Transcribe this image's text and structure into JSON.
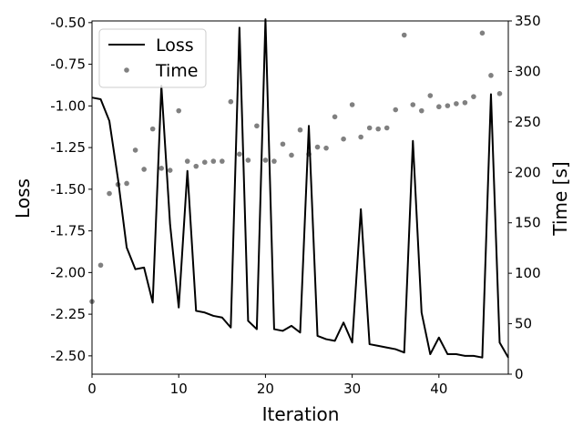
{
  "chart_data": {
    "type": "line",
    "title": "",
    "xlabel": "Iteration",
    "ylabel": "Loss",
    "y2label": "Time [s]",
    "xlim": [
      0,
      48
    ],
    "ylim": [
      -2.61,
      -0.49
    ],
    "y2lim": [
      0,
      350
    ],
    "xticks": [
      "0",
      "10",
      "20",
      "30",
      "40"
    ],
    "yticks": [
      "-2.50",
      "-2.25",
      "-2.00",
      "-1.75",
      "-1.50",
      "-1.25",
      "-1.00",
      "-0.75",
      "-0.50"
    ],
    "y2ticks": [
      "0",
      "50",
      "100",
      "150",
      "200",
      "250",
      "300",
      "350"
    ],
    "grid": false,
    "legend_position": "top-left",
    "series": [
      {
        "name": "Loss",
        "axis": "left",
        "style": "line",
        "color": "#000000",
        "x": [
          0,
          1,
          2,
          3,
          4,
          5,
          6,
          7,
          8,
          9,
          10,
          11,
          12,
          13,
          14,
          15,
          16,
          17,
          18,
          19,
          20,
          21,
          22,
          23,
          24,
          25,
          26,
          27,
          28,
          29,
          30,
          31,
          32,
          33,
          34,
          35,
          36,
          37,
          38,
          39,
          40,
          41,
          42,
          43,
          44,
          45,
          46,
          47,
          48
        ],
        "values": [
          -0.95,
          -0.96,
          -1.09,
          -1.44,
          -1.85,
          -1.98,
          -1.97,
          -2.18,
          -0.88,
          -1.71,
          -2.21,
          -1.39,
          -2.23,
          -2.24,
          -2.26,
          -2.27,
          -2.33,
          -0.53,
          -2.29,
          -2.34,
          -0.48,
          -2.34,
          -2.35,
          -2.32,
          -2.36,
          -1.12,
          -2.38,
          -2.4,
          -2.41,
          -2.3,
          -2.42,
          -1.62,
          -2.43,
          -2.44,
          -2.45,
          -2.46,
          -2.48,
          -1.21,
          -2.24,
          -2.49,
          -2.39,
          -2.49,
          -2.49,
          -2.5,
          -2.5,
          -2.51,
          -0.93,
          -2.42,
          -2.51
        ]
      },
      {
        "name": "Time",
        "axis": "right",
        "style": "markers",
        "color": "#808080",
        "x": [
          0,
          1,
          2,
          3,
          4,
          5,
          6,
          7,
          8,
          9,
          10,
          11,
          12,
          13,
          14,
          15,
          16,
          17,
          18,
          19,
          20,
          21,
          22,
          23,
          24,
          25,
          26,
          27,
          28,
          29,
          30,
          31,
          32,
          33,
          34,
          35,
          36,
          37,
          38,
          39,
          40,
          41,
          42,
          43,
          44,
          45,
          46,
          47
        ],
        "values": [
          72,
          108,
          179,
          188,
          189,
          222,
          203,
          243,
          204,
          202,
          261,
          211,
          206,
          210,
          211,
          211,
          270,
          218,
          212,
          246,
          212,
          211,
          228,
          217,
          242,
          218,
          225,
          224,
          255,
          233,
          267,
          235,
          244,
          243,
          244,
          262,
          336,
          267,
          261,
          276,
          265,
          266,
          268,
          269,
          275,
          338,
          296,
          278
        ]
      }
    ],
    "legend": [
      {
        "label": "Loss",
        "kind": "line",
        "color": "#000000"
      },
      {
        "label": "Time",
        "kind": "marker",
        "color": "#808080"
      }
    ]
  }
}
